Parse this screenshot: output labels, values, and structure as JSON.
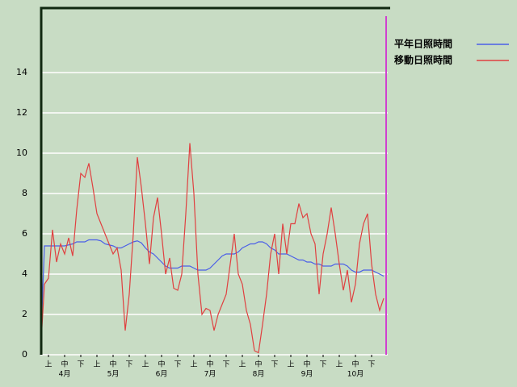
{
  "chart_data": {
    "type": "line",
    "x": [
      0,
      0.25,
      0.5,
      0.75,
      1,
      1.25,
      1.5,
      1.75,
      2,
      2.25,
      2.5,
      2.75,
      3,
      3.25,
      3.5,
      3.75,
      4,
      4.25,
      4.5,
      4.75,
      5,
      5.25,
      5.5,
      5.75,
      6,
      6.25,
      6.5,
      6.75,
      7,
      7.25,
      7.5,
      7.75,
      8,
      8.25,
      8.5,
      8.75,
      9,
      9.25,
      9.5,
      9.75,
      10,
      10.25,
      10.5,
      10.75,
      11,
      11.25,
      11.5,
      11.75,
      12,
      12.25,
      12.5,
      12.75,
      13,
      13.25,
      13.5,
      13.75,
      14,
      14.25,
      14.5,
      14.75,
      15,
      15.25,
      15.5,
      15.75,
      16,
      16.25,
      16.5,
      16.75,
      17,
      17.25,
      17.5,
      17.75,
      18,
      18.25,
      18.5,
      18.75,
      19,
      19.25,
      19.5,
      19.75,
      20,
      20.25,
      20.5,
      20.75,
      21,
      21.25
    ],
    "series": [
      {
        "name": "平年日照時間",
        "color": "#4a5ee8",
        "values": [
          0,
          5.4,
          5.4,
          5.4,
          5.4,
          5.4,
          5.4,
          5.45,
          5.5,
          5.6,
          5.6,
          5.6,
          5.7,
          5.7,
          5.7,
          5.65,
          5.5,
          5.45,
          5.4,
          5.3,
          5.3,
          5.4,
          5.5,
          5.6,
          5.65,
          5.55,
          5.3,
          5.1,
          5.0,
          4.8,
          4.6,
          4.4,
          4.3,
          4.3,
          4.3,
          4.4,
          4.4,
          4.4,
          4.3,
          4.2,
          4.2,
          4.2,
          4.3,
          4.5,
          4.7,
          4.9,
          5.0,
          5.0,
          5.0,
          5.1,
          5.3,
          5.4,
          5.5,
          5.5,
          5.6,
          5.6,
          5.5,
          5.3,
          5.2,
          5.0,
          5.0,
          5.0,
          4.9,
          4.8,
          4.7,
          4.7,
          4.6,
          4.6,
          4.5,
          4.5,
          4.4,
          4.4,
          4.4,
          4.5,
          4.5,
          4.5,
          4.4,
          4.2,
          4.1,
          4.1,
          4.2,
          4.2,
          4.2,
          4.1,
          4.0,
          3.9
        ]
      },
      {
        "name": "移動日照時間",
        "color": "#e04040",
        "values": [
          0,
          3.5,
          3.8,
          6.2,
          4.6,
          5.5,
          5.0,
          5.8,
          4.9,
          7.2,
          9.0,
          8.8,
          9.5,
          8.3,
          7.0,
          6.5,
          6.0,
          5.5,
          5.0,
          5.3,
          4.2,
          1.2,
          3.0,
          6.0,
          9.8,
          8.3,
          6.5,
          4.5,
          6.8,
          7.8,
          6.0,
          4.0,
          4.8,
          3.3,
          3.2,
          4.0,
          7.0,
          10.5,
          8.0,
          4.0,
          2.0,
          2.3,
          2.2,
          1.2,
          2.0,
          2.5,
          3.0,
          4.5,
          6.0,
          4.0,
          3.5,
          2.2,
          1.5,
          0.2,
          0.1,
          1.5,
          3.0,
          5.0,
          6.0,
          4.0,
          6.5,
          5.0,
          6.5,
          6.5,
          7.5,
          6.8,
          7.0,
          6.0,
          5.5,
          3.0,
          5.0,
          6.0,
          7.3,
          6.0,
          4.5,
          3.2,
          4.2,
          2.6,
          3.5,
          5.5,
          6.5,
          7.0,
          4.5,
          3.0,
          2.2,
          2.8
        ]
      }
    ],
    "xlim": [
      0,
      21.5
    ],
    "xticks": [
      {
        "value": 0.5,
        "label": "上"
      },
      {
        "value": 1.5,
        "label": "中"
      },
      {
        "value": 2.5,
        "label": "下"
      },
      {
        "value": 3.5,
        "label": "上"
      },
      {
        "value": 4.5,
        "label": "中"
      },
      {
        "value": 5.5,
        "label": "下"
      },
      {
        "value": 6.5,
        "label": "上"
      },
      {
        "value": 7.5,
        "label": "中"
      },
      {
        "value": 8.5,
        "label": "下"
      },
      {
        "value": 9.5,
        "label": "上"
      },
      {
        "value": 10.5,
        "label": "中"
      },
      {
        "value": 11.5,
        "label": "下"
      },
      {
        "value": 12.5,
        "label": "上"
      },
      {
        "value": 13.5,
        "label": "中"
      },
      {
        "value": 14.5,
        "label": "下"
      },
      {
        "value": 15.5,
        "label": "上"
      },
      {
        "value": 16.5,
        "label": "中"
      },
      {
        "value": 17.5,
        "label": "下"
      },
      {
        "value": 18.5,
        "label": "上"
      },
      {
        "value": 19.5,
        "label": "中"
      },
      {
        "value": 20.5,
        "label": "下"
      }
    ],
    "months": [
      {
        "value": 1.5,
        "label": "4月"
      },
      {
        "value": 4.5,
        "label": "5月"
      },
      {
        "value": 7.5,
        "label": "6月"
      },
      {
        "value": 10.5,
        "label": "7月"
      },
      {
        "value": 13.5,
        "label": "8月"
      },
      {
        "value": 16.5,
        "label": "9月"
      },
      {
        "value": 19.5,
        "label": "10月"
      }
    ],
    "ylim": [
      0,
      17.2
    ],
    "yticks": [
      0,
      2,
      4,
      6,
      8,
      10,
      12,
      14
    ],
    "grid": true
  }
}
